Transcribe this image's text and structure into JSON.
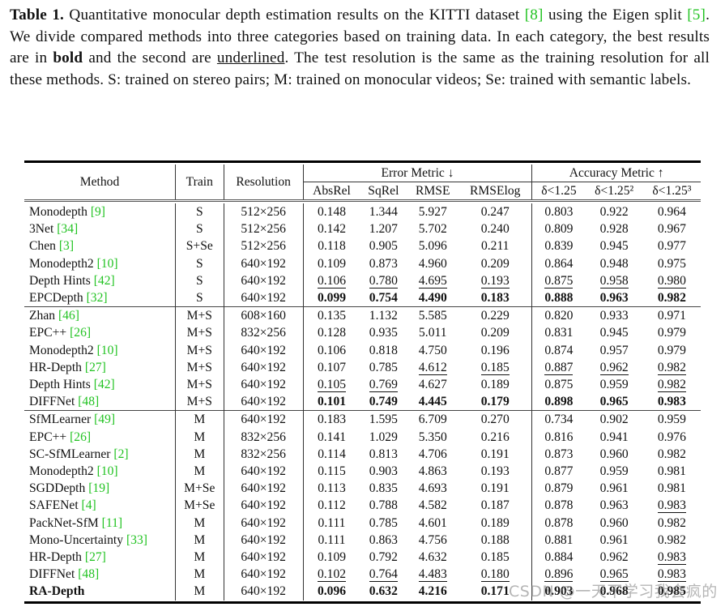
{
  "caption": {
    "label": "Table 1.",
    "text_1": " Quantitative monocular depth estimation results on the KITTI dataset ",
    "cite_1": "[8]",
    "text_2": " using the Eigen split ",
    "cite_2": "[5]",
    "text_3": ". We divide compared methods into three categories based on training data. In each category, the best results are in ",
    "bold_word": "bold",
    "text_4": " and the second are ",
    "underlined_word": "underlined",
    "text_5": ". The test resolution is the same as the training resolution for all these methods. S: trained on stereo pairs; M: trained on monocular videos; Se: trained with semantic labels."
  },
  "table": {
    "headers": {
      "method": "Method",
      "train": "Train",
      "resolution": "Resolution",
      "error_group": "Error Metric ↓",
      "accuracy_group": "Accuracy Metric ↑",
      "abs_rel": "AbsRel",
      "sq_rel": "SqRel",
      "rmse": "RMSE",
      "rmse_log": "RMSElog",
      "d1": "δ<1.25",
      "d2": "δ<1.25²",
      "d3": "δ<1.25³"
    },
    "rows": [
      {
        "name": "Monodepth ",
        "cite": "[9]",
        "train": "S",
        "res": "512×256",
        "vals": [
          "0.148",
          "1.344",
          "5.927",
          "0.247",
          "0.803",
          "0.922",
          "0.964"
        ],
        "bold": [],
        "ul": []
      },
      {
        "name": "3Net ",
        "cite": "[34]",
        "train": "S",
        "res": "512×256",
        "vals": [
          "0.142",
          "1.207",
          "5.702",
          "0.240",
          "0.809",
          "0.928",
          "0.967"
        ],
        "bold": [],
        "ul": []
      },
      {
        "name": "Chen ",
        "cite": "[3]",
        "train": "S+Se",
        "res": "512×256",
        "vals": [
          "0.118",
          "0.905",
          "5.096",
          "0.211",
          "0.839",
          "0.945",
          "0.977"
        ],
        "bold": [],
        "ul": []
      },
      {
        "name": "Monodepth2 ",
        "cite": "[10]",
        "train": "S",
        "res": "640×192",
        "vals": [
          "0.109",
          "0.873",
          "4.960",
          "0.209",
          "0.864",
          "0.948",
          "0.975"
        ],
        "bold": [],
        "ul": []
      },
      {
        "name": "Depth Hints ",
        "cite": "[42]",
        "train": "S",
        "res": "640×192",
        "vals": [
          "0.106",
          "0.780",
          "4.695",
          "0.193",
          "0.875",
          "0.958",
          "0.980"
        ],
        "bold": [],
        "ul": [
          0,
          1,
          2,
          3,
          4,
          5,
          6
        ]
      },
      {
        "name": "EPCDepth ",
        "cite": "[32]",
        "train": "S",
        "res": "640×192",
        "vals": [
          "0.099",
          "0.754",
          "4.490",
          "0.183",
          "0.888",
          "0.963",
          "0.982"
        ],
        "bold": [
          0,
          1,
          2,
          3,
          4,
          5,
          6
        ],
        "ul": []
      },
      {
        "name": "Zhan ",
        "cite": "[46]",
        "train": "M+S",
        "res": "608×160",
        "vals": [
          "0.135",
          "1.132",
          "5.585",
          "0.229",
          "0.820",
          "0.933",
          "0.971"
        ],
        "bold": [],
        "ul": [],
        "sep": true
      },
      {
        "name": "EPC++ ",
        "cite": "[26]",
        "train": "M+S",
        "res": "832×256",
        "vals": [
          "0.128",
          "0.935",
          "5.011",
          "0.209",
          "0.831",
          "0.945",
          "0.979"
        ],
        "bold": [],
        "ul": []
      },
      {
        "name": "Monodepth2 ",
        "cite": "[10]",
        "train": "M+S",
        "res": "640×192",
        "vals": [
          "0.106",
          "0.818",
          "4.750",
          "0.196",
          "0.874",
          "0.957",
          "0.979"
        ],
        "bold": [],
        "ul": []
      },
      {
        "name": "HR-Depth ",
        "cite": "[27]",
        "train": "M+S",
        "res": "640×192",
        "vals": [
          "0.107",
          "0.785",
          "4.612",
          "0.185",
          "0.887",
          "0.962",
          "0.982"
        ],
        "bold": [],
        "ul": [
          2,
          3,
          4,
          5,
          6
        ]
      },
      {
        "name": "Depth Hints ",
        "cite": "[42]",
        "train": "M+S",
        "res": "640×192",
        "vals": [
          "0.105",
          "0.769",
          "4.627",
          "0.189",
          "0.875",
          "0.959",
          "0.982"
        ],
        "bold": [],
        "ul": [
          0,
          1,
          6
        ]
      },
      {
        "name": "DIFFNet ",
        "cite": "[48]",
        "train": "M+S",
        "res": "640×192",
        "vals": [
          "0.101",
          "0.749",
          "4.445",
          "0.179",
          "0.898",
          "0.965",
          "0.983"
        ],
        "bold": [
          0,
          1,
          2,
          3,
          4,
          5,
          6
        ],
        "ul": []
      },
      {
        "name": "SfMLearner ",
        "cite": "[49]",
        "train": "M",
        "res": "640×192",
        "vals": [
          "0.183",
          "1.595",
          "6.709",
          "0.270",
          "0.734",
          "0.902",
          "0.959"
        ],
        "bold": [],
        "ul": [],
        "sep": true
      },
      {
        "name": "EPC++ ",
        "cite": "[26]",
        "train": "M",
        "res": "832×256",
        "vals": [
          "0.141",
          "1.029",
          "5.350",
          "0.216",
          "0.816",
          "0.941",
          "0.976"
        ],
        "bold": [],
        "ul": []
      },
      {
        "name": "SC-SfMLearner ",
        "cite": "[2]",
        "train": "M",
        "res": "832×256",
        "vals": [
          "0.114",
          "0.813",
          "4.706",
          "0.191",
          "0.873",
          "0.960",
          "0.982"
        ],
        "bold": [],
        "ul": []
      },
      {
        "name": "Monodepth2 ",
        "cite": "[10]",
        "train": "M",
        "res": "640×192",
        "vals": [
          "0.115",
          "0.903",
          "4.863",
          "0.193",
          "0.877",
          "0.959",
          "0.981"
        ],
        "bold": [],
        "ul": []
      },
      {
        "name": "SGDDepth ",
        "cite": "[19]",
        "train": "M+Se",
        "res": "640×192",
        "vals": [
          "0.113",
          "0.835",
          "4.693",
          "0.191",
          "0.879",
          "0.961",
          "0.981"
        ],
        "bold": [],
        "ul": []
      },
      {
        "name": "SAFENet ",
        "cite": "[4]",
        "train": "M+Se",
        "res": "640×192",
        "vals": [
          "0.112",
          "0.788",
          "4.582",
          "0.187",
          "0.878",
          "0.963",
          "0.983"
        ],
        "bold": [],
        "ul": [
          6
        ]
      },
      {
        "name": "PackNet-SfM ",
        "cite": "[11]",
        "train": "M",
        "res": "640×192",
        "vals": [
          "0.111",
          "0.785",
          "4.601",
          "0.189",
          "0.878",
          "0.960",
          "0.982"
        ],
        "bold": [],
        "ul": []
      },
      {
        "name": "Mono-Uncertainty ",
        "cite": "[33]",
        "train": "M",
        "res": "640×192",
        "vals": [
          "0.111",
          "0.863",
          "4.756",
          "0.188",
          "0.881",
          "0.961",
          "0.982"
        ],
        "bold": [],
        "ul": []
      },
      {
        "name": "HR-Depth ",
        "cite": "[27]",
        "train": "M",
        "res": "640×192",
        "vals": [
          "0.109",
          "0.792",
          "4.632",
          "0.185",
          "0.884",
          "0.962",
          "0.983"
        ],
        "bold": [],
        "ul": [
          6
        ]
      },
      {
        "name": "DIFFNet ",
        "cite": "[48]",
        "train": "M",
        "res": "640×192",
        "vals": [
          "0.102",
          "0.764",
          "4.483",
          "0.180",
          "0.896",
          "0.965",
          "0.983"
        ],
        "bold": [],
        "ul": [
          0,
          1,
          2,
          3,
          4,
          5,
          6
        ]
      },
      {
        "name": "RA-Depth",
        "cite": "",
        "train": "M",
        "res": "640×192",
        "vals": [
          "0.096",
          "0.632",
          "4.216",
          "0.171",
          "0.903",
          "0.968",
          "0.985"
        ],
        "bold": [
          0,
          1,
          2,
          3,
          4,
          5,
          6
        ],
        "ul": [],
        "name_bold": true
      }
    ]
  },
  "watermark": "CSDN @一天不学习我会疯的"
}
